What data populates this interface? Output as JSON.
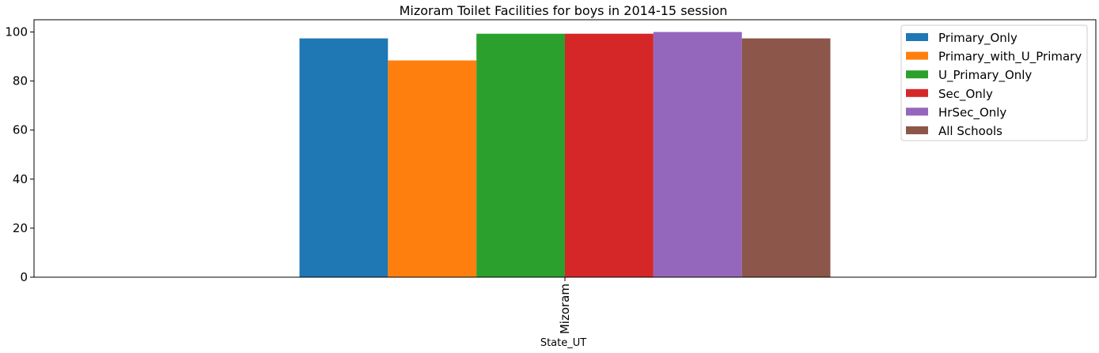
{
  "chart_data": {
    "type": "bar",
    "title": "Mizoram Toilet Facilities for boys in 2014-15 session",
    "xlabel": "State_UT",
    "ylabel": "",
    "categories": [
      "Mizoram"
    ],
    "ylim": [
      0,
      105
    ],
    "yticks": [
      0,
      20,
      40,
      60,
      80,
      100
    ],
    "grid": false,
    "legend_position": "top-right",
    "series": [
      {
        "name": "Primary_Only",
        "values": [
          97.4
        ],
        "color": "#1f77b4"
      },
      {
        "name": "Primary_with_U_Primary",
        "values": [
          88.4
        ],
        "color": "#ff7f0e"
      },
      {
        "name": "U_Primary_Only",
        "values": [
          99.3
        ],
        "color": "#2ca02c"
      },
      {
        "name": "Sec_Only",
        "values": [
          99.3
        ],
        "color": "#d62728"
      },
      {
        "name": "HrSec_Only",
        "values": [
          100
        ],
        "color": "#9467bd"
      },
      {
        "name": "All Schools",
        "values": [
          97.4
        ],
        "color": "#8c564b"
      }
    ]
  }
}
